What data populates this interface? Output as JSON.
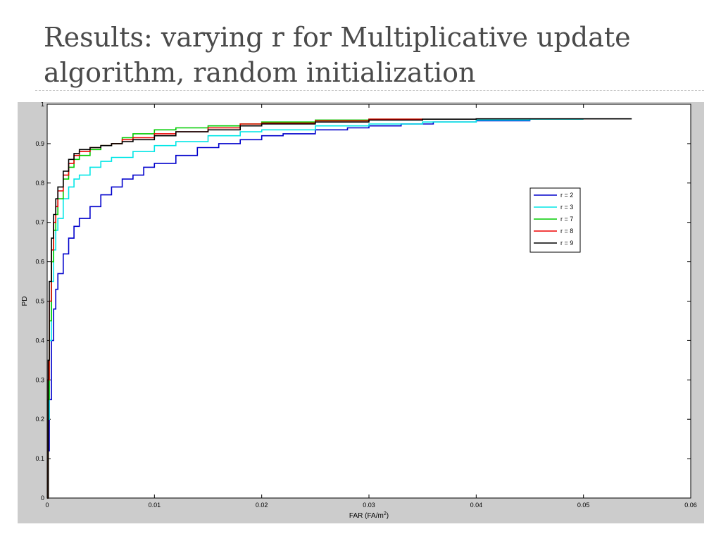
{
  "slide": {
    "title_line1": "Results: varying r for Multiplicative update",
    "title_line2": "algorithm, random initialization"
  },
  "chart_data": {
    "type": "line",
    "title": "",
    "xlabel": "FAR (FA/m",
    "xlabel_sup": "2",
    "xlabel_suffix": ")",
    "ylabel": "PD",
    "xlim": [
      0,
      0.06
    ],
    "ylim": [
      0,
      1
    ],
    "xticks": [
      0,
      0.01,
      0.02,
      0.03,
      0.04,
      0.05,
      0.06
    ],
    "xtick_labels": [
      "0",
      "0.01",
      "0.02",
      "0.03",
      "0.04",
      "0.05",
      "0.06"
    ],
    "yticks": [
      0,
      0.1,
      0.2,
      0.3,
      0.4,
      0.5,
      0.6,
      0.7,
      0.8,
      0.9,
      1
    ],
    "ytick_labels": [
      "0",
      "0.1",
      "0.2",
      "0.3",
      "0.4",
      "0.5",
      "0.6",
      "0.7",
      "0.8",
      "0.9",
      "1"
    ],
    "grid": false,
    "legend_position": "right",
    "series": [
      {
        "name": "r = 2",
        "color": "#0000cc",
        "x": [
          0,
          0.0001,
          0.0002,
          0.0004,
          0.0006,
          0.0008,
          0.001,
          0.0015,
          0.002,
          0.0025,
          0.003,
          0.004,
          0.005,
          0.006,
          0.007,
          0.008,
          0.009,
          0.01,
          0.012,
          0.014,
          0.016,
          0.018,
          0.02,
          0.022,
          0.025,
          0.028,
          0.03,
          0.033,
          0.036,
          0.04,
          0.045
        ],
        "y": [
          0,
          0.12,
          0.25,
          0.4,
          0.48,
          0.53,
          0.57,
          0.62,
          0.66,
          0.69,
          0.71,
          0.74,
          0.77,
          0.79,
          0.81,
          0.82,
          0.84,
          0.85,
          0.87,
          0.89,
          0.9,
          0.91,
          0.92,
          0.925,
          0.935,
          0.94,
          0.945,
          0.95,
          0.955,
          0.958,
          0.96
        ]
      },
      {
        "name": "r = 3",
        "color": "#00e6e6",
        "x": [
          0,
          0.0001,
          0.0002,
          0.0004,
          0.0006,
          0.0008,
          0.001,
          0.0015,
          0.002,
          0.0025,
          0.003,
          0.004,
          0.005,
          0.006,
          0.008,
          0.01,
          0.012,
          0.015,
          0.018,
          0.02,
          0.025,
          0.03,
          0.035,
          0.04,
          0.045,
          0.05
        ],
        "y": [
          0,
          0.2,
          0.4,
          0.55,
          0.63,
          0.68,
          0.71,
          0.76,
          0.79,
          0.81,
          0.82,
          0.84,
          0.855,
          0.865,
          0.88,
          0.895,
          0.905,
          0.92,
          0.93,
          0.935,
          0.945,
          0.95,
          0.955,
          0.96,
          0.962,
          0.962
        ]
      },
      {
        "name": "r = 7",
        "color": "#00cc00",
        "x": [
          0,
          0.0001,
          0.0002,
          0.0004,
          0.0006,
          0.0008,
          0.001,
          0.0015,
          0.002,
          0.0025,
          0.003,
          0.004,
          0.005,
          0.006,
          0.007,
          0.008,
          0.01,
          0.012,
          0.015,
          0.018,
          0.02,
          0.025,
          0.03,
          0.035
        ],
        "y": [
          0,
          0.25,
          0.45,
          0.6,
          0.68,
          0.72,
          0.76,
          0.81,
          0.84,
          0.86,
          0.87,
          0.885,
          0.895,
          0.9,
          0.915,
          0.925,
          0.935,
          0.94,
          0.945,
          0.95,
          0.955,
          0.96,
          0.962,
          0.963
        ]
      },
      {
        "name": "r = 8",
        "color": "#ee0000",
        "x": [
          0,
          0.0001,
          0.0002,
          0.0004,
          0.0006,
          0.0008,
          0.001,
          0.0015,
          0.002,
          0.0025,
          0.003,
          0.004,
          0.005,
          0.006,
          0.007,
          0.008,
          0.01,
          0.012,
          0.015,
          0.018,
          0.02,
          0.025,
          0.03,
          0.035
        ],
        "y": [
          0,
          0.3,
          0.5,
          0.63,
          0.7,
          0.74,
          0.78,
          0.82,
          0.85,
          0.87,
          0.88,
          0.89,
          0.895,
          0.9,
          0.91,
          0.915,
          0.925,
          0.93,
          0.94,
          0.95,
          0.952,
          0.958,
          0.962,
          0.963
        ]
      },
      {
        "name": "r = 9",
        "color": "#000000",
        "x": [
          0,
          0.0001,
          0.0002,
          0.0004,
          0.0006,
          0.0008,
          0.001,
          0.0015,
          0.002,
          0.0025,
          0.003,
          0.004,
          0.005,
          0.006,
          0.007,
          0.008,
          0.01,
          0.012,
          0.015,
          0.018,
          0.02,
          0.025,
          0.03,
          0.035,
          0.04,
          0.05,
          0.0545
        ],
        "y": [
          0,
          0.35,
          0.55,
          0.66,
          0.72,
          0.76,
          0.79,
          0.83,
          0.86,
          0.875,
          0.885,
          0.89,
          0.895,
          0.9,
          0.905,
          0.91,
          0.92,
          0.93,
          0.935,
          0.945,
          0.95,
          0.955,
          0.96,
          0.962,
          0.963,
          0.963,
          0.963
        ]
      }
    ]
  }
}
